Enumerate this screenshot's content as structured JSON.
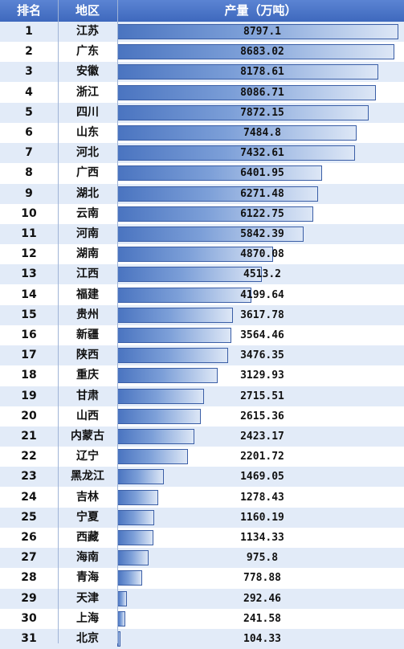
{
  "header": {
    "rank": "排名",
    "region": "地区",
    "value": "产量（万吨）"
  },
  "colors": {
    "header": "#4a74c6",
    "stripe": "#e2ebf8",
    "bar_start": "#4a74c0",
    "bar_end": "#dde7f6"
  },
  "chart_data": {
    "type": "bar",
    "ranks": [
      "1",
      "2",
      "3",
      "4",
      "5",
      "6",
      "7",
      "8",
      "9",
      "10",
      "11",
      "12",
      "13",
      "14",
      "15",
      "16",
      "17",
      "18",
      "19",
      "20",
      "21",
      "22",
      "23",
      "24",
      "25",
      "26",
      "27",
      "28",
      "29",
      "30",
      "31"
    ],
    "categories": [
      "江苏",
      "广东",
      "安徽",
      "浙江",
      "四川",
      "山东",
      "河北",
      "广西",
      "湖北",
      "云南",
      "河南",
      "湖南",
      "江西",
      "福建",
      "贵州",
      "新疆",
      "陕西",
      "重庆",
      "甘肃",
      "山西",
      "内蒙古",
      "辽宁",
      "黑龙江",
      "吉林",
      "宁夏",
      "西藏",
      "海南",
      "青海",
      "天津",
      "上海",
      "北京"
    ],
    "values": [
      8797.1,
      8683.02,
      8178.61,
      8086.71,
      7872.15,
      7484.8,
      7432.61,
      6401.95,
      6271.48,
      6122.75,
      5842.39,
      4870.08,
      4513.2,
      4199.64,
      3617.78,
      3564.46,
      3476.35,
      3129.93,
      2715.51,
      2615.36,
      2423.17,
      2201.72,
      1469.05,
      1278.43,
      1160.19,
      1134.33,
      975.8,
      778.88,
      292.46,
      241.58,
      104.33
    ],
    "value_labels": [
      "8797.1",
      "8683.02",
      "8178.61",
      "8086.71",
      "7872.15",
      "7484.8",
      "7432.61",
      "6401.95",
      "6271.48",
      "6122.75",
      "5842.39",
      "4870.08",
      "4513.2",
      "4199.64",
      "3617.78",
      "3564.46",
      "3476.35",
      "3129.93",
      "2715.51",
      "2615.36",
      "2423.17",
      "2201.72",
      "1469.05",
      "1278.43",
      "1160.19",
      "1134.33",
      "975.8",
      "778.88",
      "292.46",
      "241.58",
      "104.33"
    ],
    "orientation": "horizontal",
    "xlim": [
      0,
      8797.1
    ]
  }
}
